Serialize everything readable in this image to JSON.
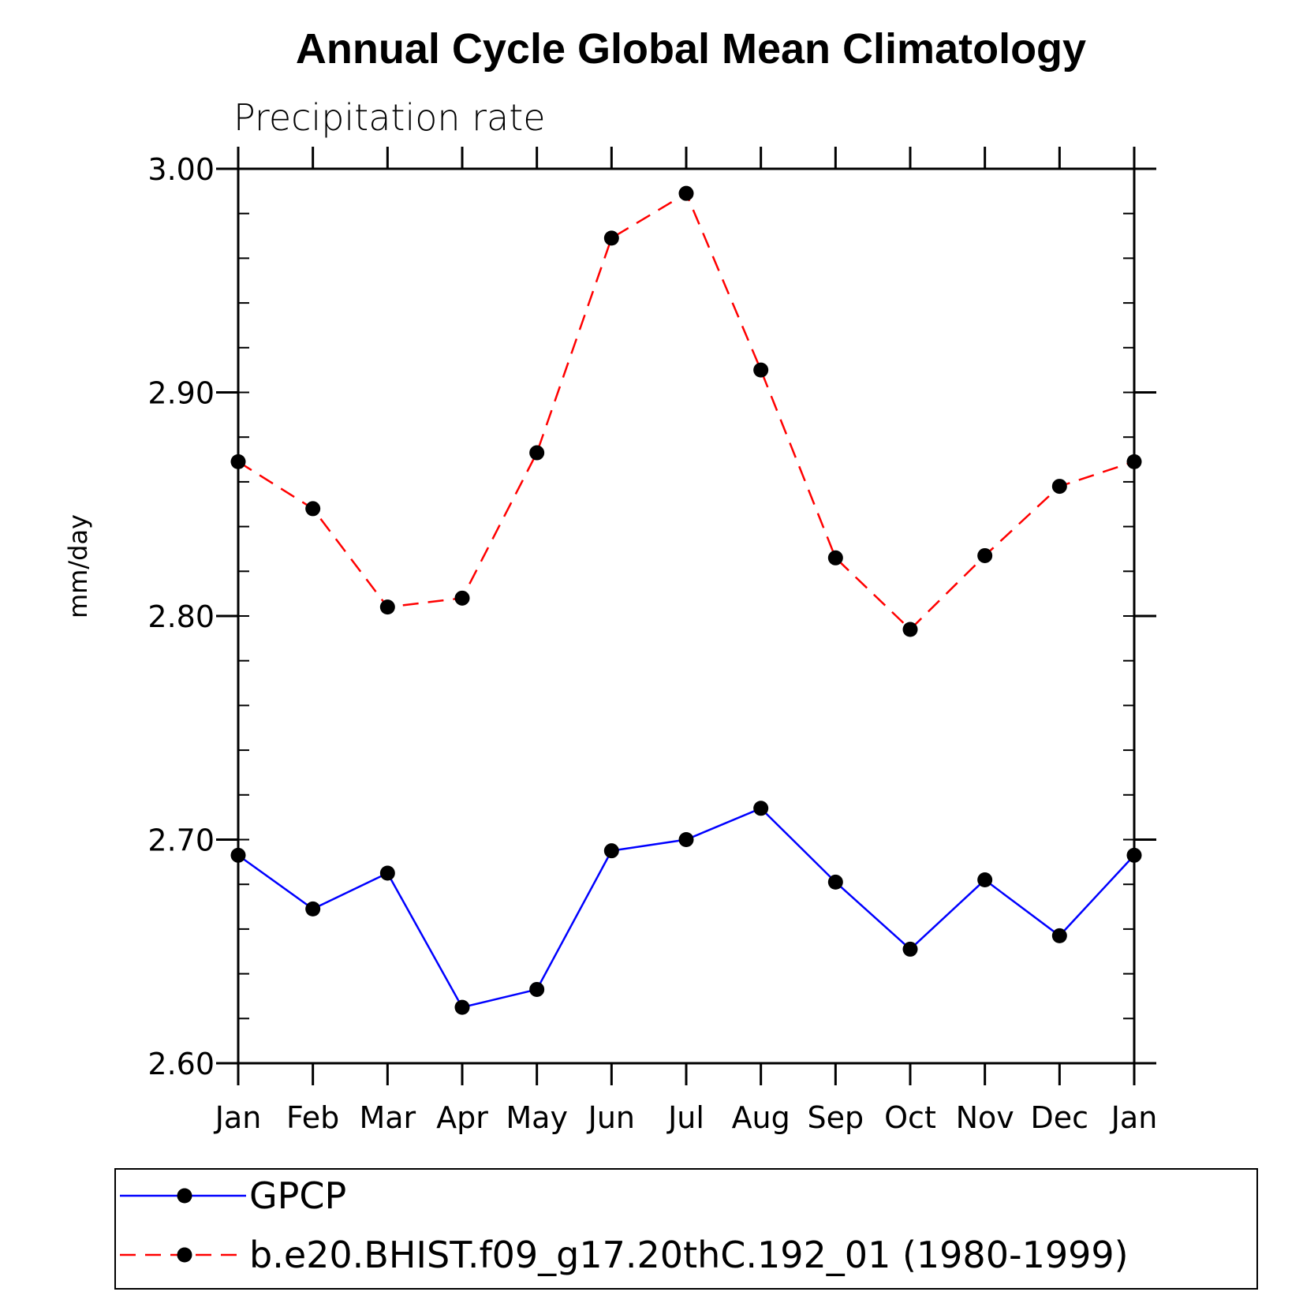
{
  "chart_data": {
    "type": "line",
    "title": "Annual Cycle Global Mean Climatology",
    "subtitle": "Precipitation rate",
    "xlabel": "",
    "ylabel": "mm/day",
    "categories": [
      "Jan",
      "Feb",
      "Mar",
      "Apr",
      "May",
      "Jun",
      "Jul",
      "Aug",
      "Sep",
      "Oct",
      "Nov",
      "Dec",
      "Jan"
    ],
    "ylim": [
      2.6,
      3.0
    ],
    "yticks": [
      "2.60",
      "2.70",
      "2.80",
      "2.90",
      "3.00"
    ],
    "legend_position": "bottom",
    "series": [
      {
        "name": "GPCP",
        "color": "#0000ff",
        "line_style": "solid",
        "marker": "filled-circle",
        "values": [
          2.693,
          2.669,
          2.685,
          2.625,
          2.633,
          2.695,
          2.7,
          2.714,
          2.681,
          2.651,
          2.682,
          2.657,
          2.693
        ]
      },
      {
        "name": "b.e20.BHIST.f09_g17.20thC.192_01 (1980-1999)",
        "color": "#ff0000",
        "line_style": "dashed",
        "marker": "filled-circle",
        "values": [
          2.869,
          2.848,
          2.804,
          2.808,
          2.873,
          2.969,
          2.989,
          2.91,
          2.826,
          2.794,
          2.827,
          2.858,
          2.869
        ]
      }
    ]
  }
}
